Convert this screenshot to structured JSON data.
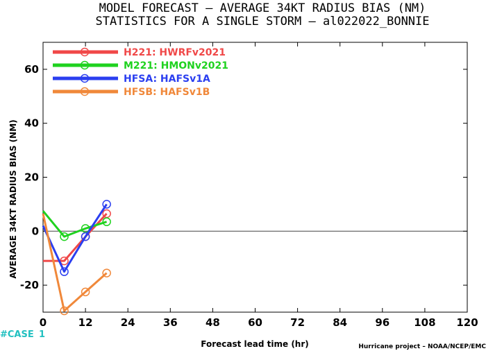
{
  "title": {
    "line1": "MODEL FORECAST – AVERAGE 34KT RADIUS BIAS (NM)",
    "line2": "STATISTICS FOR A SINGLE STORM – al022022_BONNIE"
  },
  "footer": {
    "case_label": "#CASE",
    "case_count": "1",
    "credit": "Hurricane project – NOAA/NCEP/EMC"
  },
  "chart_data": {
    "type": "line",
    "xlabel": "Forecast lead time (hr)",
    "ylabel": "AVERAGE 34KT RADIUS BIAS (NM)",
    "xlim": [
      0,
      120
    ],
    "ylim": [
      -30,
      70
    ],
    "xticks": [
      0,
      12,
      24,
      36,
      48,
      60,
      72,
      84,
      96,
      108,
      120
    ],
    "yticks": [
      -20,
      0,
      20,
      40,
      60
    ],
    "zero_line": true,
    "grid": false,
    "legend_position": "top-left",
    "series": [
      {
        "name": "H221",
        "label": "HWRFv2021",
        "color": "#f04848",
        "x": [
          0,
          6,
          12,
          18
        ],
        "y": [
          -11,
          -11,
          -2,
          6.5
        ]
      },
      {
        "name": "M221",
        "label": "HMONv2021",
        "color": "#1fd21f",
        "x": [
          0,
          6,
          12,
          18
        ],
        "y": [
          7.5,
          -2,
          1,
          3.5
        ]
      },
      {
        "name": "HFSA",
        "label": "HAFSv1A",
        "color": "#2b3ff0",
        "x": [
          0,
          6,
          12,
          18
        ],
        "y": [
          2,
          -15,
          -2,
          10
        ]
      },
      {
        "name": "HFSB",
        "label": "HAFSv1B",
        "color": "#f0883a",
        "x": [
          0,
          6,
          12,
          18
        ],
        "y": [
          6.5,
          -29.5,
          -22.5,
          -15.5
        ]
      }
    ]
  }
}
